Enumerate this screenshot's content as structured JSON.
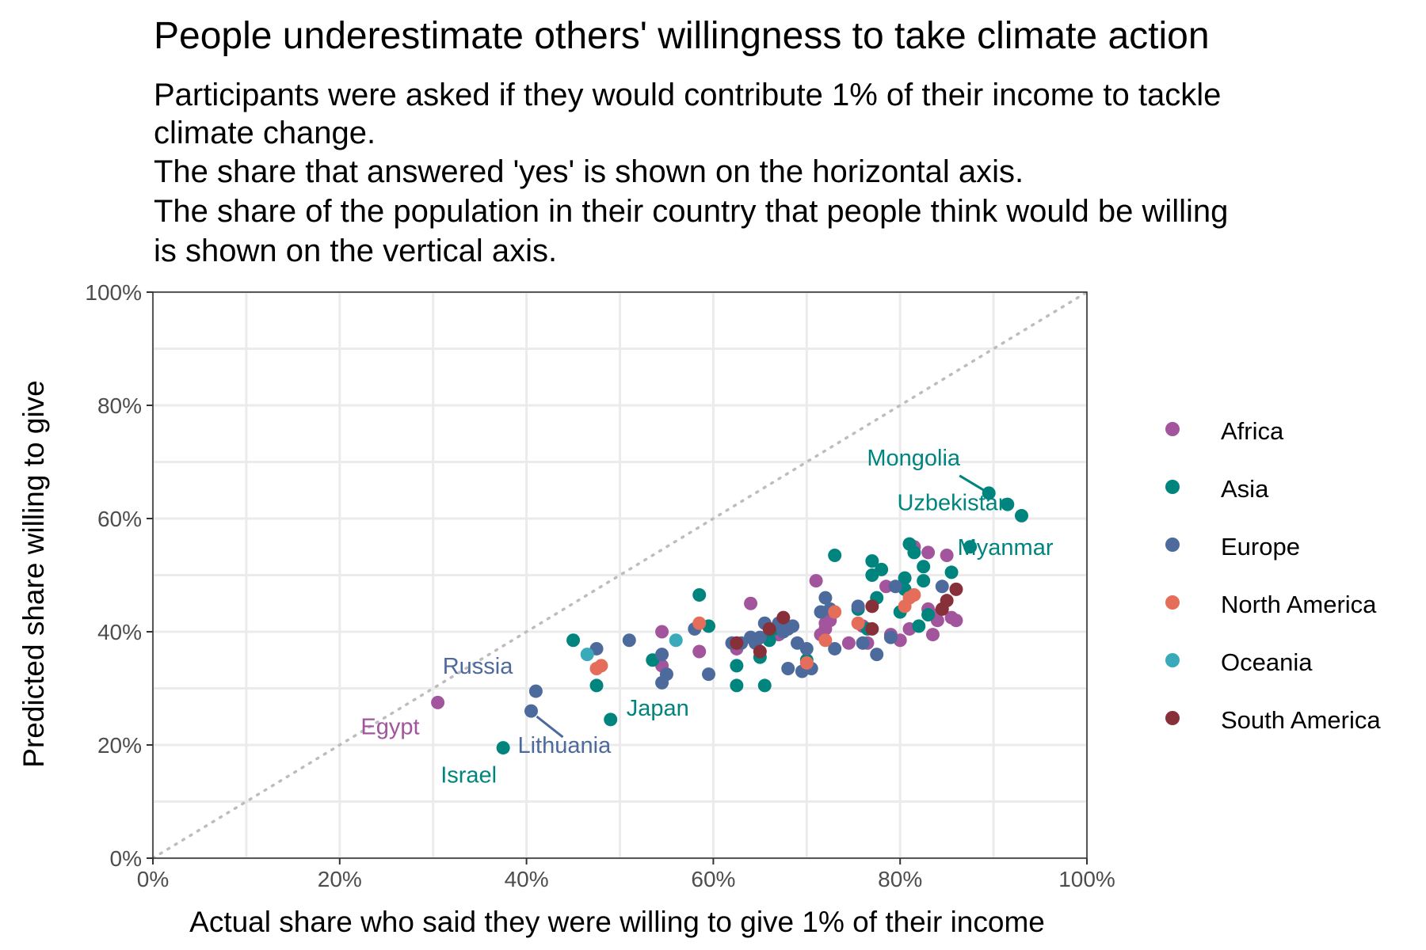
{
  "chart_data": {
    "type": "scatter",
    "title": "People underestimate others' willingness to take climate action",
    "subtitle_lines": [
      "Participants were asked if they would contribute 1% of their income to tackle",
      "climate change.",
      "The share that answered 'yes' is shown on the horizontal axis.",
      "The share of the population in their country that people think would be willing",
      "is shown on the vertical axis."
    ],
    "xlabel": "Actual share who said they were willing to give 1% of their income",
    "ylabel": "Predicted share willing to give",
    "xlim": [
      0,
      100
    ],
    "ylim": [
      0,
      100
    ],
    "x_ticks": [
      0,
      20,
      40,
      60,
      80,
      100
    ],
    "y_ticks": [
      0,
      20,
      40,
      60,
      80,
      100
    ],
    "x_tick_labels": [
      "0%",
      "20%",
      "40%",
      "60%",
      "80%",
      "100%"
    ],
    "y_tick_labels": [
      "0%",
      "20%",
      "40%",
      "60%",
      "80%",
      "100%"
    ],
    "grid": true,
    "reference_line": "y = x (dotted)",
    "legend_position": "right",
    "series": [
      {
        "name": "Africa",
        "color": "#a2559c",
        "points": [
          [
            30.5,
            27.5
          ],
          [
            54.5,
            34
          ],
          [
            54.5,
            40
          ],
          [
            58.5,
            36.5
          ],
          [
            62.5,
            37
          ],
          [
            64,
            45
          ],
          [
            67,
            39.5
          ],
          [
            71,
            49
          ],
          [
            71.5,
            39.5
          ],
          [
            72,
            40.5
          ],
          [
            72,
            41.5
          ],
          [
            72.5,
            42
          ],
          [
            74.5,
            38
          ],
          [
            76,
            41
          ],
          [
            76.5,
            38
          ],
          [
            78.5,
            48
          ],
          [
            79,
            39.5
          ],
          [
            80,
            38.5
          ],
          [
            81,
            40.5
          ],
          [
            81.5,
            55
          ],
          [
            83,
            54
          ],
          [
            83,
            44
          ],
          [
            83.5,
            43
          ],
          [
            83.5,
            39.5
          ],
          [
            84,
            42
          ],
          [
            85,
            53.5
          ],
          [
            85.5,
            42.5
          ],
          [
            86,
            42
          ]
        ]
      },
      {
        "name": "Asia",
        "color": "#00847e",
        "points": [
          [
            37.5,
            19.5
          ],
          [
            45,
            38.5
          ],
          [
            47.5,
            30.5
          ],
          [
            49,
            24.5
          ],
          [
            53.5,
            35
          ],
          [
            58.5,
            46.5
          ],
          [
            59.5,
            41
          ],
          [
            62.5,
            34
          ],
          [
            62.5,
            30.5
          ],
          [
            65,
            35.5
          ],
          [
            65.5,
            30.5
          ],
          [
            66,
            38.5
          ],
          [
            66.5,
            40.5
          ],
          [
            70,
            35
          ],
          [
            73,
            53.5
          ],
          [
            75.5,
            44
          ],
          [
            76.5,
            40.5
          ],
          [
            77,
            52.5
          ],
          [
            77,
            50
          ],
          [
            77.5,
            46
          ],
          [
            78,
            51
          ],
          [
            80,
            43.5
          ],
          [
            80.5,
            47.5
          ],
          [
            80.5,
            49.5
          ],
          [
            81,
            55.5
          ],
          [
            81.5,
            54
          ],
          [
            82,
            41
          ],
          [
            82.5,
            49
          ],
          [
            82.5,
            51.5
          ],
          [
            83,
            43
          ],
          [
            85.5,
            50.5
          ],
          [
            87.5,
            55
          ],
          [
            89.5,
            64.5
          ],
          [
            91.5,
            62.5
          ],
          [
            93,
            60.5
          ]
        ]
      },
      {
        "name": "Europe",
        "color": "#4c6a9c",
        "points": [
          [
            40.5,
            26
          ],
          [
            41,
            29.5
          ],
          [
            47.5,
            37
          ],
          [
            51,
            38.5
          ],
          [
            54.5,
            31
          ],
          [
            54.5,
            36
          ],
          [
            55,
            32.5
          ],
          [
            58,
            40.5
          ],
          [
            59.5,
            32.5
          ],
          [
            62,
            38
          ],
          [
            63,
            38
          ],
          [
            64,
            39
          ],
          [
            64.5,
            38
          ],
          [
            65,
            39
          ],
          [
            65.5,
            41.5
          ],
          [
            67,
            41.5
          ],
          [
            67.5,
            40
          ],
          [
            68,
            40.5
          ],
          [
            68,
            33.5
          ],
          [
            68.5,
            41
          ],
          [
            69,
            38
          ],
          [
            69.5,
            33
          ],
          [
            70,
            37
          ],
          [
            70.5,
            33.5
          ],
          [
            71.5,
            43.5
          ],
          [
            72,
            46
          ],
          [
            72.5,
            44
          ],
          [
            73,
            37
          ],
          [
            75.5,
            44.5
          ],
          [
            76,
            38
          ],
          [
            77.5,
            36
          ],
          [
            79,
            39
          ],
          [
            79.5,
            48
          ],
          [
            84.5,
            48
          ]
        ]
      },
      {
        "name": "North America",
        "color": "#e56e5a",
        "points": [
          [
            47.5,
            33.5
          ],
          [
            48,
            34
          ],
          [
            58.5,
            41.5
          ],
          [
            70,
            34.5
          ],
          [
            72,
            38.5
          ],
          [
            73,
            43.5
          ],
          [
            75.5,
            41.5
          ],
          [
            80.5,
            44.5
          ],
          [
            81,
            46
          ],
          [
            81.5,
            46.5
          ]
        ]
      },
      {
        "name": "Oceania",
        "color": "#38aaba",
        "points": [
          [
            46.5,
            36
          ],
          [
            56,
            38.5
          ]
        ]
      },
      {
        "name": "South America",
        "color": "#883039",
        "points": [
          [
            62.5,
            38
          ],
          [
            65,
            36.5
          ],
          [
            66,
            40.5
          ],
          [
            67.5,
            42.5
          ],
          [
            77,
            44.5
          ],
          [
            77,
            40.5
          ],
          [
            84.5,
            44
          ],
          [
            85,
            45.5
          ],
          [
            86,
            47.5
          ]
        ]
      }
    ],
    "annotations": [
      {
        "text": "Egypt",
        "series": "Africa",
        "x": 30.5,
        "y": 27.5
      },
      {
        "text": "Israel",
        "series": "Asia",
        "x": 37.5,
        "y": 19.5
      },
      {
        "text": "Japan",
        "series": "Asia",
        "x": 49,
        "y": 24.5
      },
      {
        "text": "Russia",
        "series": "Europe",
        "x": 41,
        "y": 29.5
      },
      {
        "text": "Lithuania",
        "series": "Europe",
        "x": 40.5,
        "y": 26
      },
      {
        "text": "Mongolia",
        "series": "Asia",
        "x": 89.5,
        "y": 64.5
      },
      {
        "text": "Uzbekistan",
        "series": "Asia",
        "x": 93,
        "y": 60.5
      },
      {
        "text": "Myanmar",
        "series": "Asia",
        "x": 87.5,
        "y": 55
      }
    ]
  }
}
